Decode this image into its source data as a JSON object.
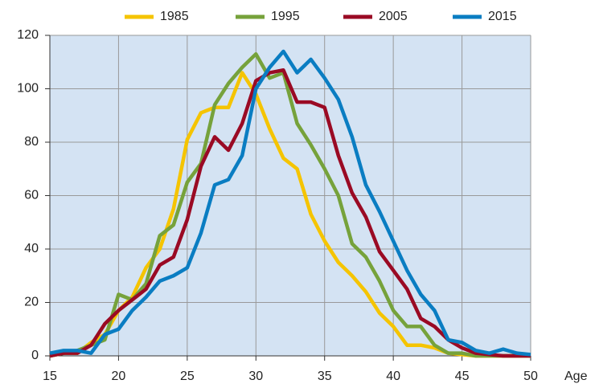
{
  "chart_data": {
    "type": "line",
    "x_label": "Age",
    "x": [
      15,
      16,
      17,
      18,
      19,
      20,
      21,
      22,
      23,
      24,
      25,
      26,
      27,
      28,
      29,
      30,
      31,
      32,
      33,
      34,
      35,
      36,
      37,
      38,
      39,
      40,
      41,
      42,
      43,
      44,
      45,
      46,
      47,
      48,
      49,
      50
    ],
    "series": [
      {
        "name": "1985",
        "color": "#f5c400",
        "values": [
          0,
          1,
          1,
          5,
          8,
          17,
          22,
          33,
          40,
          55,
          81,
          91,
          93,
          93,
          106,
          98,
          85,
          74,
          70,
          53,
          43,
          35,
          30,
          24,
          16,
          11,
          4,
          4,
          3,
          1,
          0.5,
          0,
          0,
          0,
          0,
          0
        ]
      },
      {
        "name": "1995",
        "color": "#76a23b",
        "values": [
          0,
          1,
          2,
          4,
          6,
          23,
          21,
          27,
          45,
          49,
          65,
          72,
          94,
          102,
          108,
          113,
          104,
          106,
          87,
          79,
          70,
          60,
          42,
          37,
          28,
          17,
          11,
          11,
          4,
          1,
          1,
          0,
          0,
          0,
          0,
          0
        ]
      },
      {
        "name": "2005",
        "color": "#9a0a24",
        "values": [
          0,
          1,
          1,
          4,
          12,
          17,
          21,
          25,
          34,
          37,
          51,
          71,
          82,
          77,
          87,
          103,
          106,
          107,
          95,
          95,
          93,
          75,
          61,
          52,
          39,
          32,
          25,
          14,
          11,
          6,
          3,
          1,
          0.5,
          0,
          0,
          0
        ]
      },
      {
        "name": "2015",
        "color": "#0a7dc2",
        "values": [
          1,
          2,
          2,
          1,
          8,
          10,
          17,
          22,
          28,
          30,
          33,
          46,
          64,
          66,
          75,
          100,
          108,
          114,
          106,
          111,
          104,
          96,
          82,
          64,
          54,
          43,
          32,
          23,
          17,
          6,
          5,
          2,
          1,
          2.5,
          1,
          0.5
        ]
      }
    ],
    "xlim": [
      15,
      50
    ],
    "xticks": [
      15,
      20,
      25,
      30,
      35,
      40,
      45,
      50
    ],
    "ylim": [
      0,
      120
    ],
    "yticks": [
      0,
      20,
      40,
      60,
      80,
      100,
      120
    ],
    "grid": true,
    "legend": "top",
    "background": "#d4e3f3"
  }
}
